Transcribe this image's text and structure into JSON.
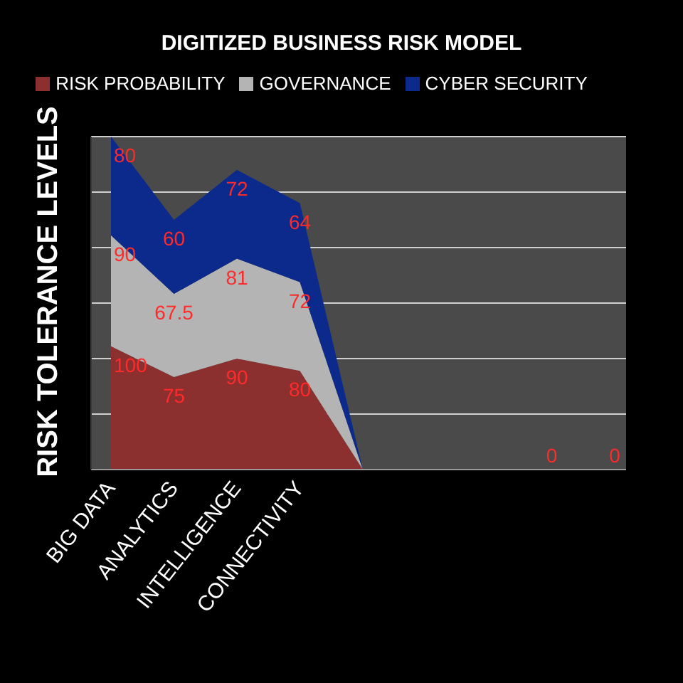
{
  "chart_data": {
    "type": "area",
    "title": "DIGITIZED BUSINESS RISK MODEL",
    "ylabel": "RISK TOLERANCE LEVELS",
    "categories": [
      "BIG DATA",
      "ANALYTICS",
      "INTELLIGENCE",
      "CONNECTIVITY",
      null,
      null,
      null,
      null,
      null
    ],
    "series": [
      {
        "name": "RISK PROBABILITY",
        "color": "#8c2f2f",
        "values": [
          100,
          75,
          90,
          80,
          0,
          0,
          0,
          0,
          0
        ],
        "value_labels": [
          "100",
          "75",
          "90",
          "80",
          null,
          null,
          null,
          null,
          null
        ]
      },
      {
        "name": "GOVERNANCE",
        "color": "#b4b4b4",
        "values": [
          90,
          67.5,
          81,
          72,
          0,
          0,
          0,
          0,
          0
        ],
        "value_labels": [
          "90",
          "67.5",
          "81",
          "72",
          null,
          null,
          null,
          null,
          null
        ]
      },
      {
        "name": "CYBER SECURITY",
        "color": "#0b2a8c",
        "values": [
          80,
          60,
          72,
          64,
          0,
          0,
          0,
          0,
          0
        ],
        "value_labels": [
          "80",
          "60",
          "72",
          "64",
          null,
          null,
          null,
          "0",
          "0"
        ]
      }
    ],
    "stacked": true,
    "tick_labels": "x",
    "grid": "y",
    "legend": "top"
  }
}
